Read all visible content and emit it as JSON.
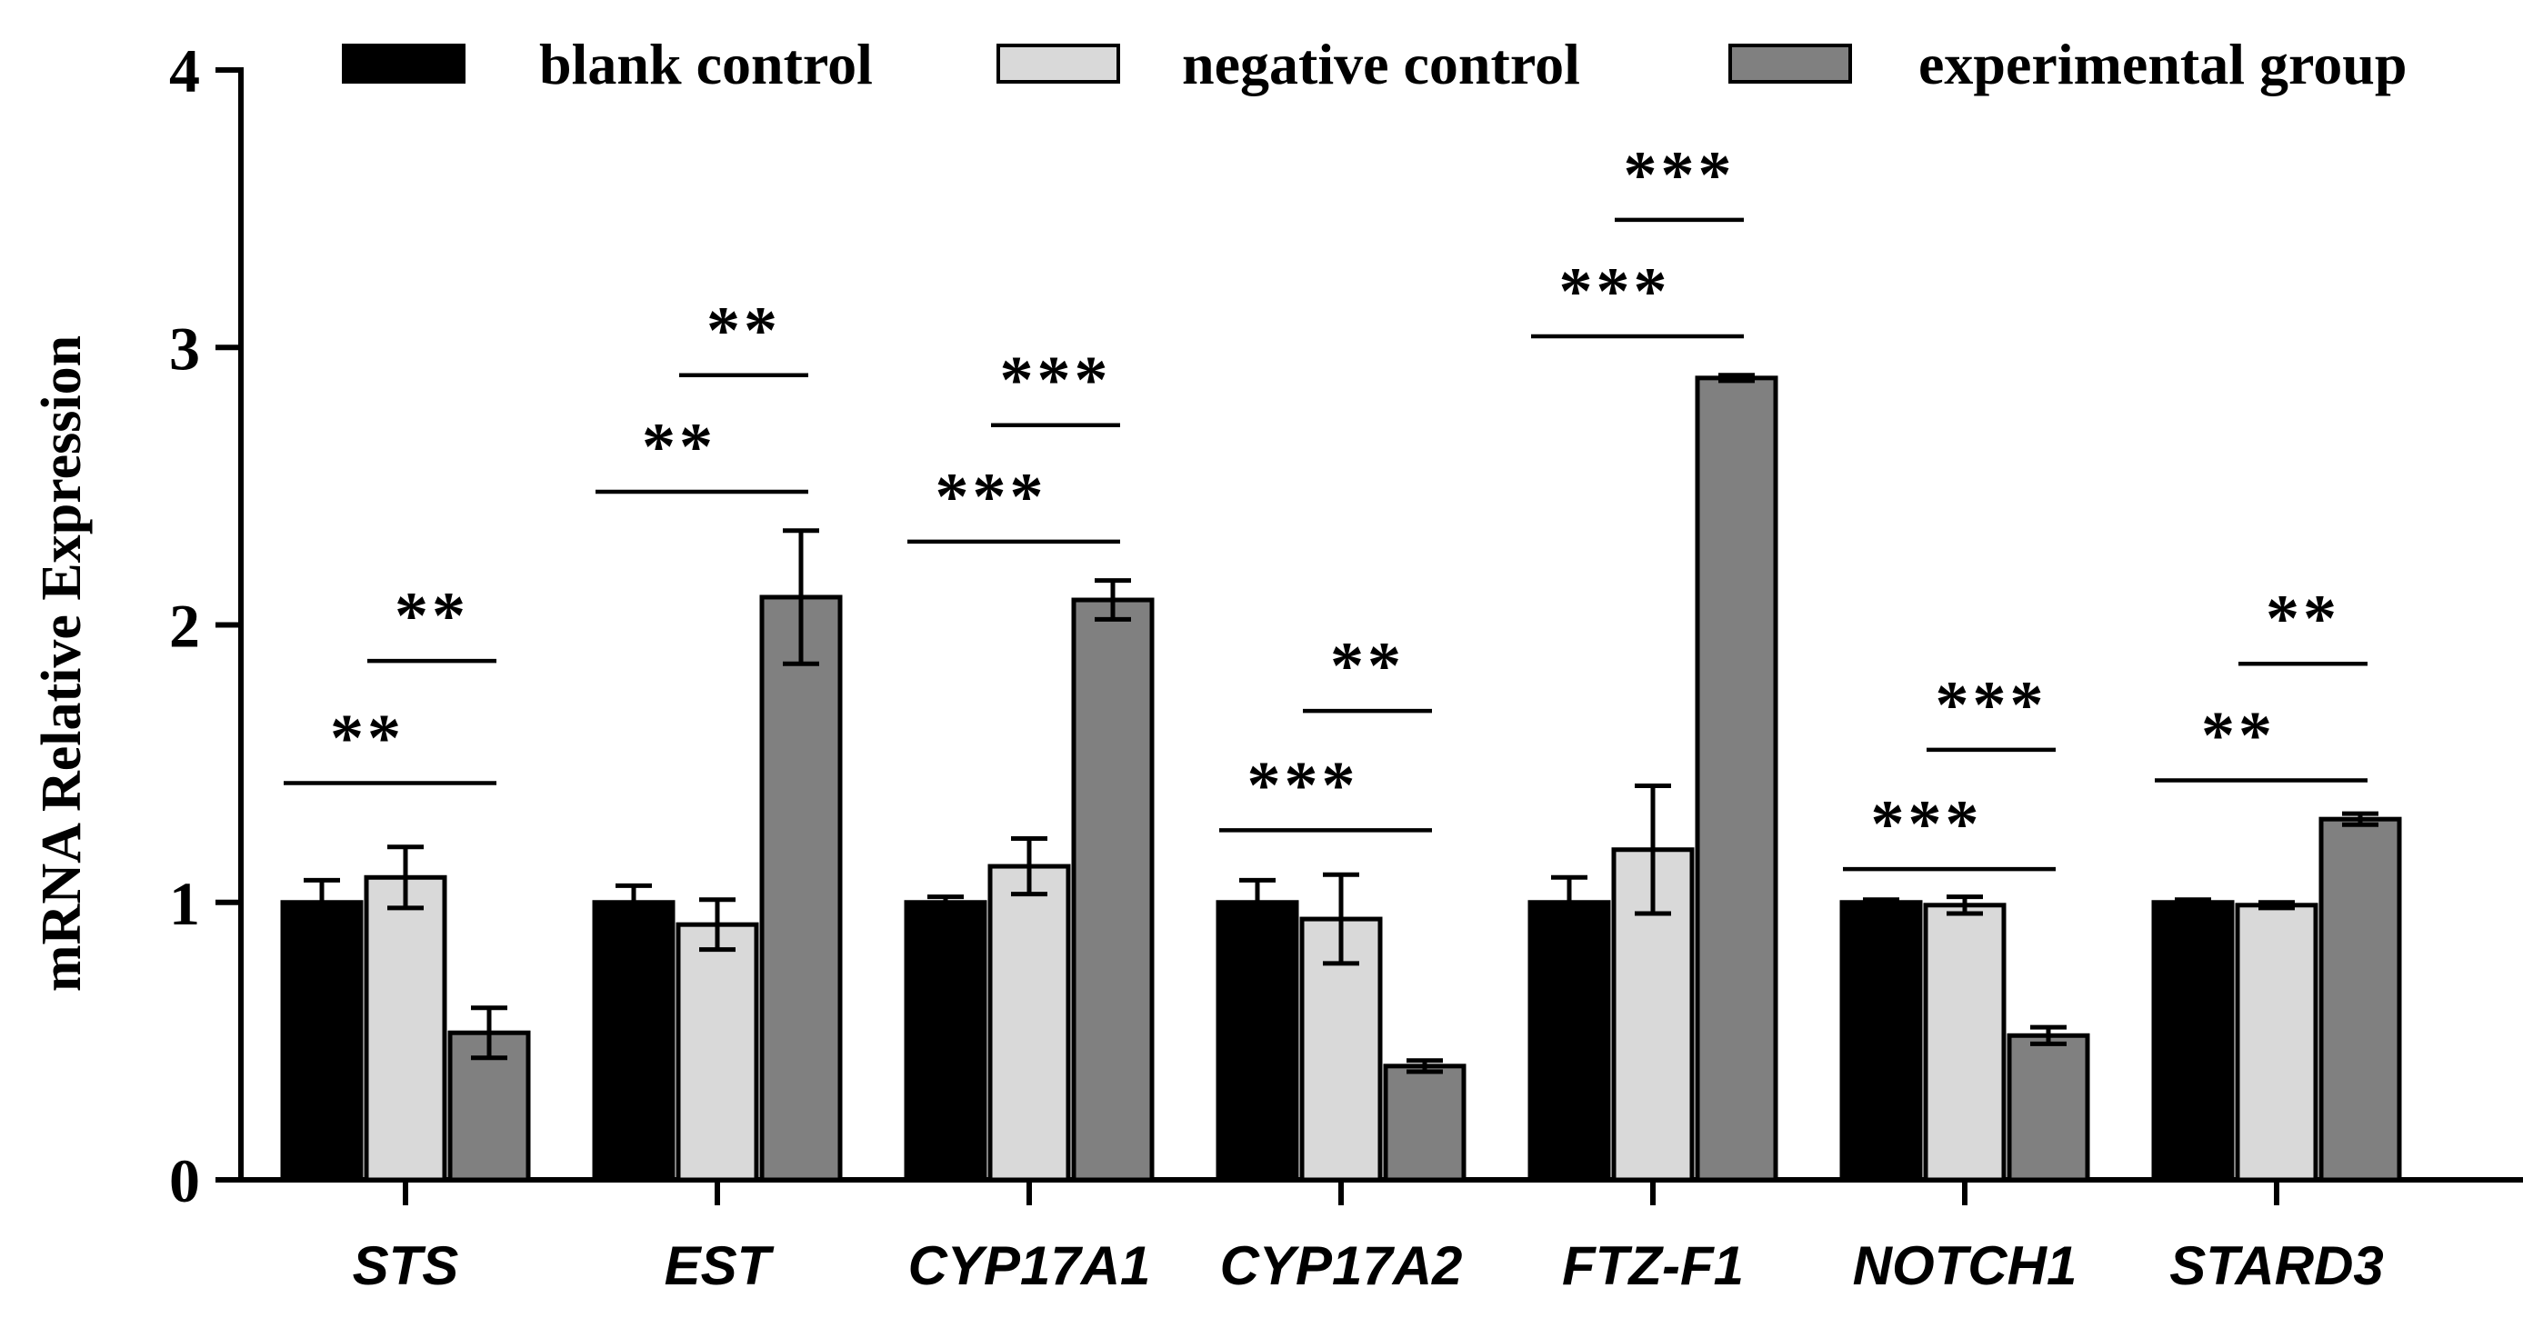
{
  "chart_data": {
    "type": "bar",
    "title": "",
    "xlabel": "",
    "ylabel": "mRNA Relative Expression",
    "ylim": [
      0,
      4
    ],
    "yticks": [
      "0",
      "1",
      "2",
      "3",
      "4"
    ],
    "categories": [
      "STS",
      "EST",
      "CYP17A1",
      "CYP17A2",
      "FTZ-F1",
      "NOTCH1",
      "STARD3"
    ],
    "series": [
      {
        "name": "blank control",
        "color": "#000000",
        "values": [
          1.0,
          1.0,
          1.0,
          1.0,
          1.0,
          1.0,
          1.0
        ],
        "errors": [
          0.08,
          0.06,
          0.02,
          0.08,
          0.09,
          0.01,
          0.01
        ]
      },
      {
        "name": "negative control",
        "color": "#d9d9d9",
        "values": [
          1.09,
          0.92,
          1.13,
          0.94,
          1.19,
          0.99,
          0.99
        ],
        "errors": [
          0.11,
          0.09,
          0.1,
          0.16,
          0.23,
          0.03,
          0.01
        ]
      },
      {
        "name": "experimental group",
        "color": "#808080",
        "values": [
          0.53,
          2.1,
          2.09,
          0.41,
          2.89,
          0.52,
          1.3
        ],
        "errors": [
          0.09,
          0.24,
          0.07,
          0.02,
          0.01,
          0.03,
          0.02
        ]
      }
    ],
    "significance": [
      {
        "category": 0,
        "from": 0,
        "to": 2,
        "y": 1.43,
        "label": "**"
      },
      {
        "category": 0,
        "from": 1,
        "to": 2,
        "y": 1.87,
        "label": "**"
      },
      {
        "category": 1,
        "from": 0,
        "to": 2,
        "y": 2.48,
        "label": "**"
      },
      {
        "category": 1,
        "from": 1,
        "to": 2,
        "y": 2.9,
        "label": "**"
      },
      {
        "category": 2,
        "from": 0,
        "to": 2,
        "y": 2.3,
        "label": "***"
      },
      {
        "category": 2,
        "from": 1,
        "to": 2,
        "y": 2.72,
        "label": "***"
      },
      {
        "category": 3,
        "from": 0,
        "to": 2,
        "y": 1.26,
        "label": "***"
      },
      {
        "category": 3,
        "from": 1,
        "to": 2,
        "y": 1.69,
        "label": "**"
      },
      {
        "category": 4,
        "from": 0,
        "to": 2,
        "y": 3.04,
        "label": "***"
      },
      {
        "category": 4,
        "from": 1,
        "to": 2,
        "y": 3.46,
        "label": "***"
      },
      {
        "category": 5,
        "from": 0,
        "to": 2,
        "y": 1.12,
        "label": "***"
      },
      {
        "category": 5,
        "from": 1,
        "to": 2,
        "y": 1.55,
        "label": "***"
      },
      {
        "category": 6,
        "from": 0,
        "to": 2,
        "y": 1.44,
        "label": "**"
      },
      {
        "category": 6,
        "from": 1,
        "to": 2,
        "y": 1.86,
        "label": "**"
      }
    ],
    "legend": "top"
  }
}
